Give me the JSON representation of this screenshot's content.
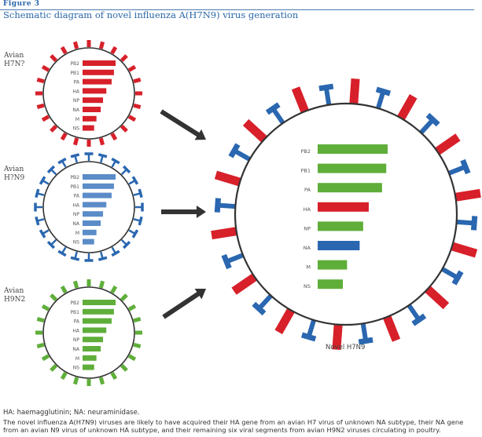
{
  "figure": {
    "label": "Figure 3",
    "title": "Schematic diagram of novel influenza A(H7N9) virus generation"
  },
  "colors": {
    "red": "#d7202a",
    "blue": "#2a67b0",
    "lightblue": "#5b8cc8",
    "green": "#5fae3a",
    "arrow": "#333333",
    "accent": "#2a66a8"
  },
  "viruses": [
    {
      "id": "h7n7",
      "label_line1": "Avian",
      "label_line2": "H7N?",
      "spike_color": "red",
      "segments": [
        {
          "name": "PB2",
          "label": "PB2",
          "length": 1.0,
          "color": "red"
        },
        {
          "name": "PB1",
          "label": "PB1",
          "length": 0.95,
          "color": "red"
        },
        {
          "name": "PA",
          "label": "PA",
          "length": 0.88,
          "color": "red"
        },
        {
          "name": "HA",
          "label": "HA",
          "length": 0.72,
          "color": "red"
        },
        {
          "name": "NP",
          "label": "NP",
          "length": 0.62,
          "color": "red"
        },
        {
          "name": "NA",
          "label": "NA",
          "length": 0.55,
          "color": "red"
        },
        {
          "name": "M",
          "label": "M",
          "length": 0.42,
          "color": "red"
        },
        {
          "name": "NS",
          "label": "NS",
          "length": 0.35,
          "color": "red"
        }
      ]
    },
    {
      "id": "h7n9",
      "label_line1": "Avian",
      "label_line2": "H?N9",
      "spike_color": "blue",
      "segments": [
        {
          "name": "PB2",
          "label": "PB2",
          "length": 1.0,
          "color": "lightblue"
        },
        {
          "name": "PB1",
          "label": "PB1",
          "length": 0.95,
          "color": "lightblue"
        },
        {
          "name": "PA",
          "label": "PA",
          "length": 0.88,
          "color": "lightblue"
        },
        {
          "name": "HA",
          "label": "HA",
          "length": 0.72,
          "color": "lightblue"
        },
        {
          "name": "NP",
          "label": "NP",
          "length": 0.62,
          "color": "lightblue"
        },
        {
          "name": "NA",
          "label": "NA",
          "length": 0.55,
          "color": "lightblue"
        },
        {
          "name": "M",
          "label": "M",
          "length": 0.42,
          "color": "lightblue"
        },
        {
          "name": "NS",
          "label": "NS",
          "length": 0.35,
          "color": "lightblue"
        }
      ]
    },
    {
      "id": "h9n2",
      "label_line1": "Avian",
      "label_line2": "H9N2",
      "spike_color": "green",
      "segments": [
        {
          "name": "PB2",
          "label": "PB2",
          "length": 1.0,
          "color": "green"
        },
        {
          "name": "PB1",
          "label": "PB1",
          "length": 0.95,
          "color": "green"
        },
        {
          "name": "PA",
          "label": "PA",
          "length": 0.88,
          "color": "green"
        },
        {
          "name": "HA",
          "label": "HA",
          "length": 0.72,
          "color": "green"
        },
        {
          "name": "NP",
          "label": "NP",
          "length": 0.62,
          "color": "green"
        },
        {
          "name": "NA",
          "label": "NA",
          "length": 0.55,
          "color": "green"
        },
        {
          "name": "M",
          "label": "M",
          "length": 0.42,
          "color": "green"
        },
        {
          "name": "NS",
          "label": "NS",
          "length": 0.35,
          "color": "green"
        }
      ]
    }
  ],
  "novel": {
    "label": "Novel H7N9",
    "segments": [
      {
        "name": "PB2",
        "label": "PB2",
        "length": 1.0,
        "color": "green"
      },
      {
        "name": "PB1",
        "label": "PB1",
        "length": 0.98,
        "color": "green"
      },
      {
        "name": "PA",
        "label": "PA",
        "length": 0.92,
        "color": "green"
      },
      {
        "name": "HA",
        "label": "HA",
        "length": 0.73,
        "color": "red"
      },
      {
        "name": "NP",
        "label": "NP",
        "length": 0.65,
        "color": "green"
      },
      {
        "name": "NA",
        "label": "NA",
        "length": 0.6,
        "color": "blue"
      },
      {
        "name": "M",
        "label": "M",
        "length": 0.42,
        "color": "green"
      },
      {
        "name": "NS",
        "label": "NS",
        "length": 0.36,
        "color": "green"
      }
    ]
  },
  "footer": {
    "abbreviations": "HA: haemagglutinin; NA: neuraminidase.",
    "caption": "The novel influenza A(H7N9) viruses are likely to have acquired their HA gene from an avian H7 virus of unknown NA subtype, their NA gene from an avian N9 virus of unknown HA subtype, and their remaining six viral segments from avian H9N2 viruses circulating in poultry."
  }
}
